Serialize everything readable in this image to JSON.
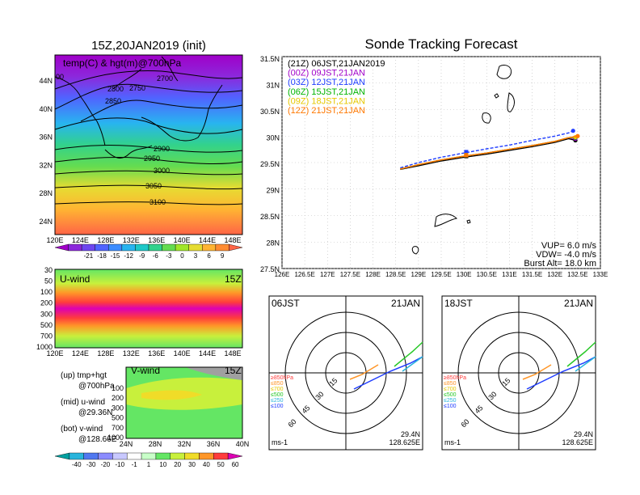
{
  "map_panel": {
    "title": "15Z,20JAN2019 (init)",
    "field_label": "temp(C) & hgt(m)@700hPa",
    "lat_ticks": [
      "44N",
      "40N",
      "36N",
      "32N",
      "28N",
      "24N"
    ],
    "lon_ticks": [
      "120E",
      "124E",
      "128E",
      "132E",
      "136E",
      "140E",
      "144E",
      "148E"
    ],
    "contour_labels": [
      "2700",
      "2750",
      "2800",
      "2850",
      "2900",
      "2950",
      "3000",
      "3050",
      "3100",
      "00"
    ]
  },
  "temp_colorbar": {
    "labels": [
      "-21",
      "-18",
      "-15",
      "-12",
      "-9",
      "-6",
      "-3",
      "0",
      "3",
      "6",
      "9"
    ],
    "colors": [
      "#a000c8",
      "#8c28dc",
      "#6e46f0",
      "#5064ff",
      "#3c8cff",
      "#28b4f0",
      "#1ec8c8",
      "#32d28c",
      "#64dc50",
      "#a0e628",
      "#e6dc32",
      "#ffb432",
      "#ff8c32",
      "#ff6446"
    ]
  },
  "uwind_panel": {
    "label": "U-wind",
    "time": "15Z",
    "y_ticks": [
      "30",
      "50",
      "100",
      "200",
      "300",
      "500",
      "700",
      "1000"
    ],
    "x_ticks": [
      "120E",
      "124E",
      "128E",
      "132E",
      "136E",
      "140E",
      "144E",
      "148E"
    ]
  },
  "vwind_panel": {
    "label": "V-wind",
    "time": "15Z",
    "y_ticks": [
      "100",
      "200",
      "300",
      "500",
      "700",
      "1000"
    ],
    "x_ticks": [
      "24N",
      "28N",
      "32N",
      "36N",
      "40N"
    ]
  },
  "wind_colorbar": {
    "labels": [
      "-40",
      "-30",
      "-20",
      "-10",
      "-1",
      "1",
      "10",
      "20",
      "30",
      "40",
      "50",
      "60"
    ],
    "colors": [
      "#00a0a0",
      "#28b4dc",
      "#5078f0",
      "#8c8cff",
      "#c8c8ff",
      "#ffffff",
      "#c8ffc8",
      "#64e664",
      "#c8f03c",
      "#f0dc28",
      "#ff9628",
      "#ff3c3c",
      "#dc00b4"
    ]
  },
  "legend_notes": [
    "(up) tmp+hgt",
    "@700hPa",
    "(mid) u-wind",
    "@29.36N",
    "(bot) v-wind",
    "@128.66E"
  ],
  "track_panel": {
    "title": "Sonde Tracking Forecast",
    "lat_ticks": [
      "31.5N",
      "31N",
      "30.5N",
      "30N",
      "29.5N",
      "29N",
      "28.5N",
      "28N",
      "27.5N"
    ],
    "lon_ticks": [
      "126E",
      "126.5E",
      "127E",
      "127.5E",
      "128E",
      "128.5E",
      "129E",
      "129.5E",
      "130E",
      "130.5E",
      "131E",
      "131.5E",
      "132E",
      "132.5E",
      "133E"
    ],
    "legend": [
      {
        "text": "(21Z)  06JST,21JAN2019",
        "color": "#000000"
      },
      {
        "text": "(00Z)  09JST,21JAN",
        "color": "#a000c8"
      },
      {
        "text": "(03Z)  12JST,21JAN",
        "color": "#1e3cff"
      },
      {
        "text": "(06Z)  15JST,21JAN",
        "color": "#00b400"
      },
      {
        "text": "(09Z)  18JST,21JAN",
        "color": "#e6c800"
      },
      {
        "text": "(12Z)  21JST,21JAN",
        "color": "#ff7800"
      }
    ],
    "params": [
      "VUP=  6.0  m/s",
      "VDW= -4.0  m/s",
      "Burst Alt=  18.0  km"
    ]
  },
  "hodographs": [
    {
      "time": "06JST",
      "date": "21JAN",
      "lat": "29.4N",
      "lon": "128.625E",
      "unit": "ms-1",
      "ring_labels": [
        "15",
        "30",
        "45",
        "60"
      ],
      "levels": [
        {
          "t": "≥850hPa",
          "c": "#ff3c3c"
        },
        {
          "t": "≤850",
          "c": "#ff9628"
        },
        {
          "t": "≤700",
          "c": "#e6c800"
        },
        {
          "t": "≤500",
          "c": "#28c828"
        },
        {
          "t": "≤250",
          "c": "#28b4dc"
        },
        {
          "t": "≤100",
          "c": "#1e3cff"
        }
      ]
    },
    {
      "time": "18JST",
      "date": "21JAN",
      "lat": "29.4N",
      "lon": "128.625E",
      "unit": "ms-1",
      "ring_labels": [
        "15",
        "30",
        "45",
        "60"
      ],
      "levels": [
        {
          "t": "≥850hPa",
          "c": "#ff3c3c"
        },
        {
          "t": "≤850",
          "c": "#ff9628"
        },
        {
          "t": "≤700",
          "c": "#e6c800"
        },
        {
          "t": "≤500",
          "c": "#28c828"
        },
        {
          "t": "≤250",
          "c": "#28b4dc"
        },
        {
          "t": "≤100",
          "c": "#1e3cff"
        }
      ]
    }
  ],
  "chart_data": [
    {
      "type": "line",
      "title": "Sonde Tracking Forecast",
      "xlabel": "",
      "ylabel": "",
      "xlim": [
        126,
        133
      ],
      "ylim": [
        27.5,
        31.5
      ],
      "grid": true,
      "series": [
        {
          "name": "(21Z)  06JST,21JAN2019",
          "color": "#000000",
          "x": [
            128.6,
            129.0,
            129.5,
            130.0,
            130.5,
            131.0,
            131.5,
            132.0,
            132.3,
            132.45
          ],
          "y": [
            29.37,
            29.44,
            29.53,
            29.6,
            29.66,
            29.73,
            29.8,
            29.88,
            29.95,
            29.92
          ]
        },
        {
          "name": "(00Z)  09JST,21JAN",
          "color": "#a000c8",
          "x": [
            128.6,
            129.0,
            129.5,
            130.0,
            130.5,
            131.0,
            131.5,
            132.0,
            132.3,
            132.45
          ],
          "y": [
            29.38,
            29.46,
            29.55,
            29.62,
            29.68,
            29.75,
            29.82,
            29.9,
            29.97,
            29.95
          ]
        },
        {
          "name": "(03Z)  12JST,21JAN",
          "color": "#1e3cff",
          "x": [
            128.6,
            129.0,
            129.5,
            130.0,
            130.5,
            131.0,
            131.5,
            132.0,
            132.3,
            132.4
          ],
          "y": [
            29.4,
            29.5,
            29.6,
            29.68,
            29.76,
            29.83,
            29.92,
            30.0,
            30.06,
            30.1
          ]
        },
        {
          "name": "(06Z)  15JST,21JAN",
          "color": "#00b400",
          "x": [
            128.6,
            129.0,
            129.5,
            130.0,
            130.5,
            131.0,
            131.5,
            132.0,
            132.3,
            132.45
          ],
          "y": [
            29.38,
            29.46,
            29.55,
            29.62,
            29.68,
            29.75,
            29.82,
            29.9,
            29.97,
            29.97
          ]
        },
        {
          "name": "(09Z)  18JST,21JAN",
          "color": "#e6c800",
          "x": [
            128.6,
            129.0,
            129.5,
            130.0,
            130.5,
            131.0,
            131.5,
            132.0,
            132.3,
            132.45
          ],
          "y": [
            29.38,
            29.46,
            29.55,
            29.62,
            29.68,
            29.75,
            29.82,
            29.9,
            29.97,
            29.98
          ]
        },
        {
          "name": "(12Z)  21JST,21JAN",
          "color": "#ff7800",
          "x": [
            128.6,
            129.0,
            129.5,
            130.0,
            130.5,
            131.0,
            131.5,
            132.0,
            132.3,
            132.5
          ],
          "y": [
            29.38,
            29.46,
            29.55,
            29.62,
            29.68,
            29.75,
            29.82,
            29.9,
            29.97,
            30.0
          ]
        }
      ]
    }
  ]
}
